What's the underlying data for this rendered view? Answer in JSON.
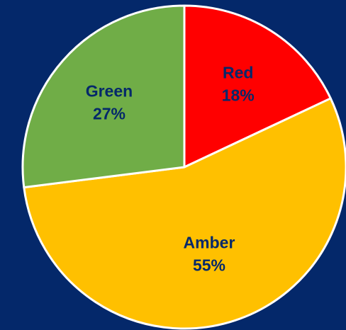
{
  "chart_data": {
    "type": "pie",
    "title": "",
    "slices": [
      {
        "label": "Red",
        "percent_label": "18%",
        "value": 18,
        "color": "#ff0000",
        "label_color": "#04286a"
      },
      {
        "label": "Amber",
        "percent_label": "55%",
        "value": 55,
        "color": "#ffc000",
        "label_color": "#04286a"
      },
      {
        "label": "Green",
        "percent_label": "27%",
        "value": 27,
        "color": "#70ad47",
        "label_color": "#04286a"
      }
    ],
    "start": "12 o'clock",
    "direction": "clockwise",
    "legend": "none",
    "background_color": "#04286a"
  }
}
